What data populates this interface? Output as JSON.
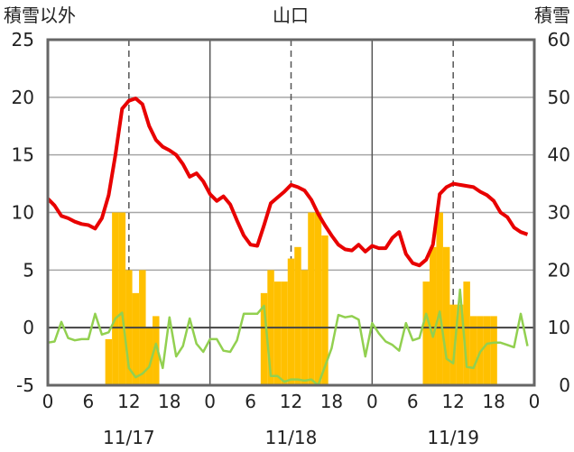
{
  "titles": {
    "left": "積雪以外",
    "center": "山口",
    "right": "積雪"
  },
  "chart_data": {
    "type": "line+bar",
    "title": "山口",
    "y_left_label": "積雪以外",
    "y_right_label": "積雪",
    "ylim_left": [
      -5,
      25
    ],
    "ylim_right": [
      0,
      60
    ],
    "yticks_left": [
      "25",
      "20",
      "15",
      "10",
      "5",
      "0",
      "-5"
    ],
    "yticks_right": [
      "60",
      "50",
      "40",
      "30",
      "20",
      "10",
      "0"
    ],
    "x_hour_ticks": [
      "0",
      "6",
      "12",
      "18",
      "0",
      "6",
      "12",
      "18",
      "0",
      "6",
      "12",
      "18",
      "0"
    ],
    "date_labels": [
      "11/17",
      "11/18",
      "11/19"
    ],
    "x_hours": [
      0,
      1,
      2,
      3,
      4,
      5,
      6,
      7,
      8,
      9,
      10,
      11,
      12,
      13,
      14,
      15,
      16,
      17,
      18,
      19,
      20,
      21,
      22,
      23,
      24,
      25,
      26,
      27,
      28,
      29,
      30,
      31,
      32,
      33,
      34,
      35,
      36,
      37,
      38,
      39,
      40,
      41,
      42,
      43,
      44,
      45,
      46,
      47,
      48,
      49,
      50,
      51,
      52,
      53,
      54,
      55,
      56,
      57,
      58,
      59,
      60,
      61,
      62,
      63,
      64,
      65,
      66,
      67,
      68,
      69,
      70,
      71
    ],
    "series": [
      {
        "axis": "left",
        "type": "line",
        "color": "#e80000",
        "values": [
          11.2,
          10.6,
          9.7,
          9.5,
          9.2,
          9.0,
          8.9,
          8.6,
          9.5,
          11.5,
          15.0,
          19.0,
          19.7,
          19.9,
          19.4,
          17.5,
          16.3,
          15.7,
          15.4,
          15.0,
          14.2,
          13.1,
          13.4,
          12.7,
          11.6,
          11.0,
          11.4,
          10.7,
          9.3,
          8.0,
          7.2,
          7.1,
          8.9,
          10.8,
          11.3,
          11.8,
          12.4,
          12.2,
          11.9,
          11.1,
          9.9,
          8.9,
          8.0,
          7.2,
          6.8,
          6.7,
          7.2,
          6.6,
          7.1,
          6.9,
          6.9,
          7.8,
          8.3,
          6.4,
          5.6,
          5.4,
          5.9,
          7.2,
          11.6,
          12.2,
          12.5,
          12.4,
          12.3,
          12.2,
          11.8,
          11.5,
          11.0,
          10.0,
          9.6,
          8.7,
          8.3,
          8.1
        ]
      },
      {
        "axis": "left",
        "type": "line",
        "color": "#92d050",
        "values": [
          -1.3,
          -1.2,
          0.5,
          -0.9,
          -1.1,
          -1.0,
          -1.0,
          1.2,
          -0.6,
          -0.4,
          0.8,
          1.3,
          -3.5,
          -4.3,
          -4.0,
          -3.4,
          -1.4,
          -3.5,
          0.9,
          -2.5,
          -1.6,
          0.8,
          -1.4,
          -2.1,
          -1.0,
          -1.0,
          -2.0,
          -2.1,
          -1.1,
          1.2,
          1.2,
          1.2,
          1.9,
          -4.2,
          -4.2,
          -4.7,
          -4.5,
          -4.5,
          -4.6,
          -4.5,
          -5.0,
          -3.4,
          -1.8,
          1.1,
          0.9,
          1.0,
          0.7,
          -2.5,
          0.4,
          -0.5,
          -1.2,
          -1.5,
          -2.0,
          0.4,
          -1.1,
          -0.9,
          1.2,
          -0.8,
          1.4,
          -2.7,
          -3.1,
          3.3,
          -3.4,
          -3.5,
          -2.1,
          -1.4,
          -1.3,
          -1.3,
          -1.5,
          -1.7,
          1.2,
          -1.6
        ]
      },
      {
        "axis": "right",
        "type": "bar",
        "color": "#ffc000",
        "values": [
          0,
          0,
          0,
          0,
          0,
          0,
          0,
          0,
          0,
          8,
          30,
          30,
          20,
          16,
          20,
          10,
          12,
          0,
          0,
          0,
          0,
          0,
          0,
          0,
          0,
          0,
          0,
          0,
          0,
          0,
          0,
          0,
          16,
          20,
          18,
          18,
          22,
          24,
          20,
          30,
          30,
          26,
          0,
          0,
          0,
          0,
          0,
          0,
          0,
          0,
          0,
          0,
          0,
          0,
          0,
          0,
          18,
          24,
          30,
          24,
          14,
          14,
          18,
          12,
          12,
          12,
          12,
          0,
          0,
          0,
          0,
          0
        ]
      }
    ]
  }
}
